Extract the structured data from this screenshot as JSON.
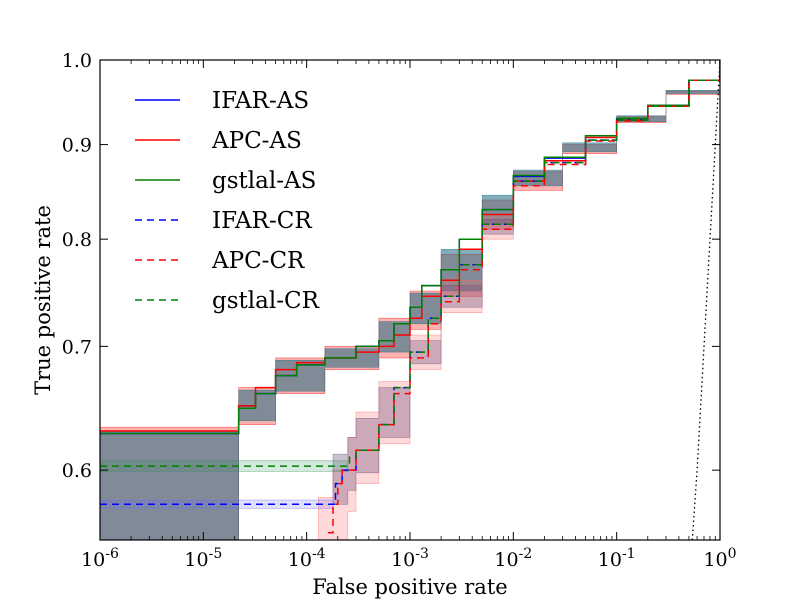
{
  "chart_data": {
    "type": "line",
    "title": "",
    "xlabel": "False positive rate",
    "ylabel": "True positive rate",
    "xscale": "log",
    "yscale": "log",
    "xlim": [
      1e-06,
      1
    ],
    "ylim": [
      0.55,
      1.0
    ],
    "x_ticks": [
      {
        "value": 1e-06,
        "base": "10",
        "exp": "-6"
      },
      {
        "value": 1e-05,
        "base": "10",
        "exp": "-5"
      },
      {
        "value": 0.0001,
        "base": "10",
        "exp": "-4"
      },
      {
        "value": 0.001,
        "base": "10",
        "exp": "-3"
      },
      {
        "value": 0.01,
        "base": "10",
        "exp": "-2"
      },
      {
        "value": 0.1,
        "base": "10",
        "exp": "-1"
      },
      {
        "value": 1,
        "base": "10",
        "exp": "0"
      }
    ],
    "y_ticks": [
      {
        "value": 0.6,
        "label": "0.6"
      },
      {
        "value": 0.7,
        "label": "0.7"
      },
      {
        "value": 0.8,
        "label": "0.8"
      },
      {
        "value": 0.9,
        "label": "0.9"
      },
      {
        "value": 1.0,
        "label": "1.0"
      }
    ],
    "legend_position": "top-left",
    "series": [
      {
        "name": "IFAR-AS",
        "color": "#0000ff",
        "dash": "solid",
        "x": [
          1e-06,
          5.5e-06,
          2.2e-05,
          3.2e-05,
          5e-05,
          8e-05,
          0.00015,
          0.0003,
          0.0005,
          0.0007,
          0.001,
          0.0013,
          0.002,
          0.003,
          0.005,
          0.01,
          0.02,
          0.05,
          0.1,
          0.2,
          0.5,
          1.0
        ],
        "y": [
          0.628,
          0.628,
          0.65,
          0.66,
          0.675,
          0.684,
          0.69,
          0.7,
          0.705,
          0.72,
          0.735,
          0.755,
          0.77,
          0.8,
          0.83,
          0.865,
          0.885,
          0.91,
          0.93,
          0.945,
          0.975,
          1.0
        ]
      },
      {
        "name": "APC-AS",
        "color": "#ff0000",
        "dash": "solid",
        "x": [
          1e-06,
          5.5e-06,
          2.2e-05,
          3.2e-05,
          5e-05,
          8e-05,
          0.00015,
          0.0003,
          0.0005,
          0.0007,
          0.001,
          0.0013,
          0.002,
          0.003,
          0.005,
          0.01,
          0.02,
          0.05,
          0.1,
          0.2,
          0.5,
          1.0
        ],
        "y": [
          0.63,
          0.63,
          0.65,
          0.665,
          0.68,
          0.686,
          0.69,
          0.695,
          0.7,
          0.71,
          0.725,
          0.745,
          0.76,
          0.79,
          0.825,
          0.86,
          0.882,
          0.908,
          0.928,
          0.944,
          0.975,
          1.0
        ]
      },
      {
        "name": "gstlal-AS",
        "color": "#008000",
        "dash": "solid",
        "x": [
          1e-06,
          5.5e-06,
          2.2e-05,
          3.2e-05,
          5e-05,
          8e-05,
          0.00015,
          0.0003,
          0.0005,
          0.0007,
          0.001,
          0.0013,
          0.002,
          0.003,
          0.005,
          0.01,
          0.02,
          0.05,
          0.1,
          0.2,
          0.5,
          1.0
        ],
        "y": [
          0.628,
          0.628,
          0.648,
          0.66,
          0.675,
          0.684,
          0.69,
          0.7,
          0.705,
          0.72,
          0.735,
          0.755,
          0.77,
          0.8,
          0.83,
          0.866,
          0.886,
          0.91,
          0.93,
          0.945,
          0.975,
          1.0
        ]
      },
      {
        "name": "IFAR-CR",
        "color": "#0000ff",
        "dash": "dashed",
        "x": [
          1e-06,
          0.00018,
          0.00019,
          0.00022,
          0.0003,
          0.0005,
          0.0007,
          0.001,
          0.0015,
          0.002,
          0.003,
          0.005,
          0.01,
          0.02,
          0.05,
          0.1,
          0.2,
          0.5,
          1.0
        ],
        "y": [
          0.575,
          0.575,
          0.59,
          0.6,
          0.615,
          0.635,
          0.665,
          0.695,
          0.725,
          0.745,
          0.775,
          0.815,
          0.86,
          0.88,
          0.905,
          0.928,
          0.944,
          0.975,
          1.0
        ]
      },
      {
        "name": "APC-CR",
        "color": "#ff0000",
        "dash": "dashed",
        "x": [
          0.00016,
          0.00018,
          0.0002,
          0.00022,
          0.0003,
          0.0005,
          0.0007,
          0.001,
          0.0015,
          0.002,
          0.003,
          0.005,
          0.01,
          0.02,
          0.05,
          0.1,
          0.2,
          0.5,
          1.0
        ],
        "y": [
          0.555,
          0.575,
          0.59,
          0.6,
          0.615,
          0.635,
          0.66,
          0.69,
          0.72,
          0.74,
          0.77,
          0.81,
          0.855,
          0.878,
          0.904,
          0.927,
          0.944,
          0.975,
          1.0
        ]
      },
      {
        "name": "gstlal-CR",
        "color": "#008000",
        "dash": "dashed",
        "x": [
          1e-06,
          0.00025,
          0.00026,
          0.0003,
          0.0005,
          0.0007,
          0.001,
          0.0015,
          0.002,
          0.003,
          0.005,
          0.01,
          0.02,
          0.05,
          0.1,
          0.2,
          0.5,
          1.0
        ],
        "y": [
          0.603,
          0.603,
          0.61,
          0.615,
          0.635,
          0.665,
          0.695,
          0.725,
          0.745,
          0.775,
          0.815,
          0.86,
          0.88,
          0.905,
          0.928,
          0.944,
          0.975,
          1.0
        ]
      }
    ],
    "bands": [
      {
        "name": "AS-band-red",
        "color": "#ff0000",
        "opacity": 0.3,
        "x": [
          1e-06,
          5.5e-06,
          2.2e-05,
          5e-05,
          0.00015,
          0.0005,
          0.001,
          0.002,
          0.005,
          0.01,
          0.03,
          0.1,
          0.3,
          1.0
        ],
        "y_low": [
          0.55,
          0.55,
          0.635,
          0.66,
          0.68,
          0.69,
          0.715,
          0.745,
          0.81,
          0.85,
          0.89,
          0.925,
          0.958,
          1.0
        ],
        "y_high": [
          0.633,
          0.633,
          0.665,
          0.69,
          0.7,
          0.725,
          0.75,
          0.785,
          0.84,
          0.87,
          0.9,
          0.932,
          0.962,
          1.0
        ]
      },
      {
        "name": "AS-band-teal",
        "color": "#1a6b82",
        "opacity": 0.55,
        "x": [
          1e-06,
          5.5e-06,
          2.2e-05,
          5e-05,
          0.00015,
          0.0005,
          0.001,
          0.002,
          0.005,
          0.01,
          0.03,
          0.1,
          0.3,
          1.0
        ],
        "y_low": [
          0.55,
          0.55,
          0.638,
          0.662,
          0.682,
          0.695,
          0.72,
          0.75,
          0.815,
          0.855,
          0.892,
          0.926,
          0.959,
          1.0
        ],
        "y_high": [
          0.63,
          0.63,
          0.663,
          0.688,
          0.698,
          0.722,
          0.748,
          0.79,
          0.845,
          0.872,
          0.902,
          0.933,
          0.963,
          1.0
        ]
      },
      {
        "name": "CR-band-red",
        "color": "#ff6666",
        "opacity": 0.25,
        "x": [
          0.00013,
          0.00018,
          0.00025,
          0.0003,
          0.0005,
          0.001,
          0.002,
          0.005,
          0.01
        ],
        "y_low": [
          0.55,
          0.55,
          0.57,
          0.59,
          0.62,
          0.68,
          0.73,
          0.8,
          0.85
        ],
        "y_high": [
          0.58,
          0.6,
          0.625,
          0.645,
          0.67,
          0.71,
          0.76,
          0.825,
          0.865
        ]
      },
      {
        "name": "CR-band-purple",
        "color": "#6b4f7a",
        "opacity": 0.35,
        "x": [
          0.00018,
          0.00025,
          0.0003,
          0.0005,
          0.001,
          0.002,
          0.005,
          0.01
        ],
        "y_low": [
          0.575,
          0.585,
          0.598,
          0.625,
          0.685,
          0.735,
          0.805,
          0.852
        ],
        "y_high": [
          0.612,
          0.625,
          0.64,
          0.665,
          0.705,
          0.755,
          0.82,
          0.862
        ]
      },
      {
        "name": "CR-band-green",
        "color": "#2e8b57",
        "opacity": 0.2,
        "x": [
          1e-06,
          0.00025
        ],
        "y_low": [
          0.599,
          0.599
        ],
        "y_high": [
          0.607,
          0.607
        ]
      },
      {
        "name": "CR-band-blue",
        "color": "#6a6aff",
        "opacity": 0.2,
        "x": [
          1e-06,
          0.00018
        ],
        "y_low": [
          0.572,
          0.572
        ],
        "y_high": [
          0.578,
          0.578
        ]
      }
    ],
    "reference_line": {
      "name": "chance",
      "color": "#000000",
      "style": "dotted",
      "x": [
        0.54,
        0.6,
        0.7,
        0.8,
        0.9,
        1.0
      ],
      "y": [
        0.55,
        0.6,
        0.7,
        0.8,
        0.9,
        1.0
      ]
    }
  }
}
